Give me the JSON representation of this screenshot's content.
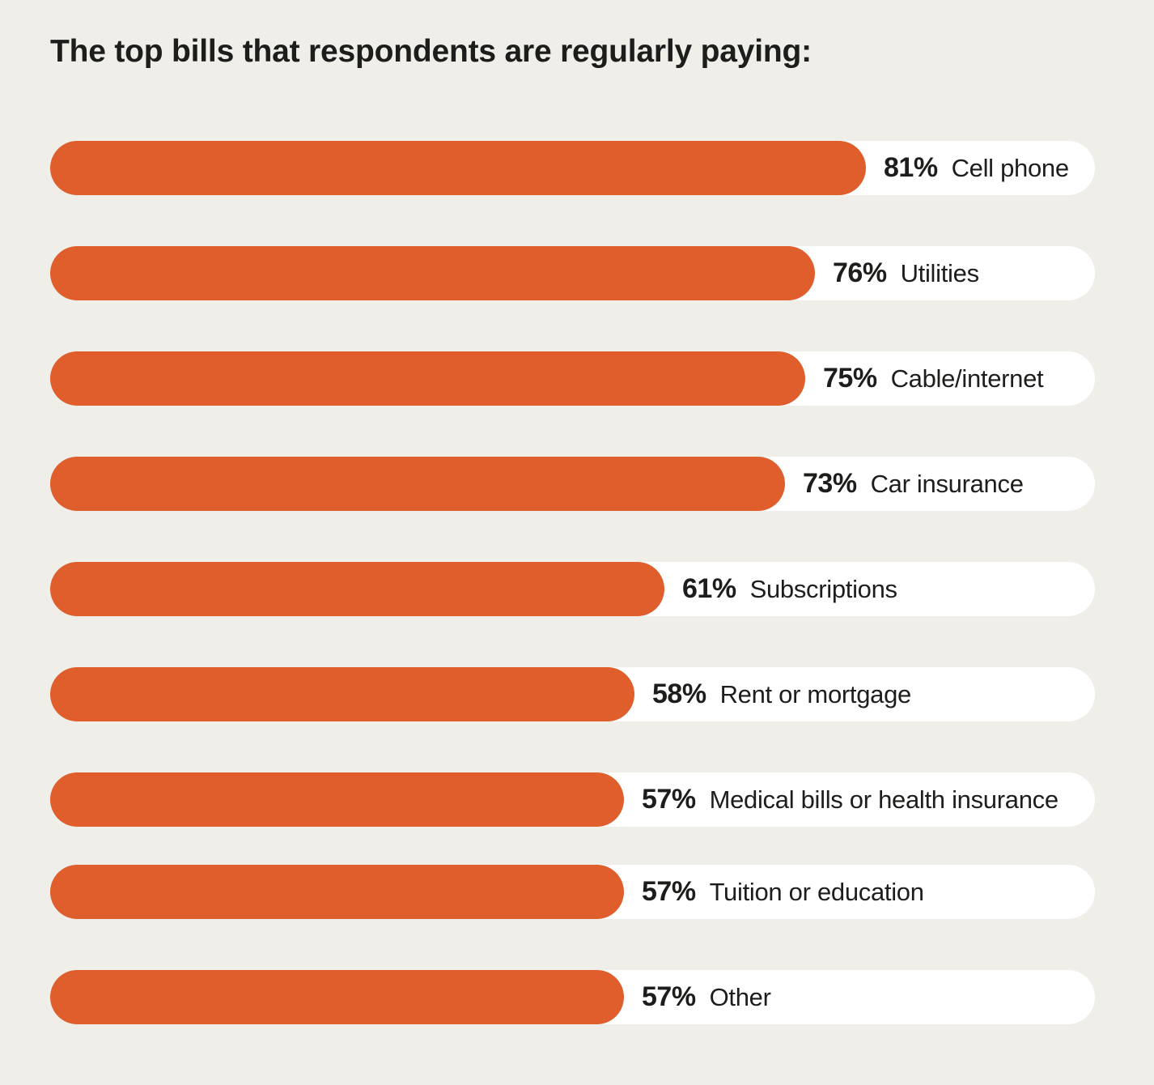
{
  "title": "The top bills that respondents are regularly paying:",
  "colors": {
    "background": "#F0EEE9",
    "bar": "#DF5E2B",
    "track": "#FFFFFF",
    "text": "#1D1D1B"
  },
  "chart_data": {
    "type": "bar",
    "orientation": "horizontal",
    "title": "The top bills that respondents are regularly paying:",
    "unit": "%",
    "xlim": [
      0,
      100
    ],
    "grid": false,
    "legend": "none",
    "categories": [
      "Cell phone",
      "Utilities",
      "Cable/internet",
      "Car insurance",
      "Subscriptions",
      "Rent or mortgage",
      "Medical bills or health insurance",
      "Tuition or education",
      "Other"
    ],
    "values": [
      81,
      76,
      75,
      73,
      61,
      58,
      57,
      57,
      57
    ],
    "value_labels": [
      "81%",
      "76%",
      "75%",
      "73%",
      "61%",
      "58%",
      "57%",
      "57%",
      "57%"
    ]
  }
}
